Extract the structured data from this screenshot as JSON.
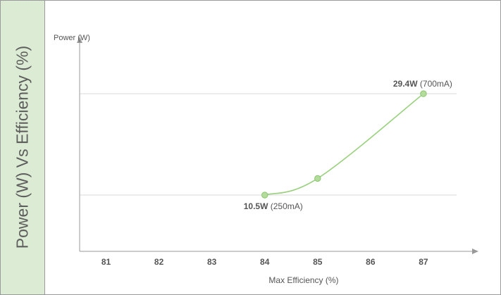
{
  "side_title": "Power (W) Vs Efficiency (%)",
  "chart_data": {
    "type": "line",
    "title": "",
    "xlabel": "Max Efficiency (%)",
    "ylabel": "Power (W)",
    "x_ticks": [
      81,
      82,
      83,
      84,
      85,
      86,
      87
    ],
    "xlim": [
      80.5,
      88
    ],
    "ylim": [
      0,
      39
    ],
    "gridlines_y": [
      10.5,
      29.4
    ],
    "grid": true,
    "series": [
      {
        "x": [
          84,
          85,
          87
        ],
        "y": [
          10.5,
          13.6,
          29.4
        ],
        "color": "#9ad07f"
      }
    ],
    "annotations": [
      {
        "x": 84,
        "y": 10.5,
        "bold": "10.5W",
        "text": " (250mA)"
      },
      {
        "x": 87,
        "y": 29.4,
        "bold": "29.4W",
        "text": " (700mA)"
      }
    ]
  },
  "colors": {
    "panel": "#dcebd3",
    "line": "#9ad07f",
    "grid": "#d9d9d9",
    "axis": "#9a9a9a"
  }
}
